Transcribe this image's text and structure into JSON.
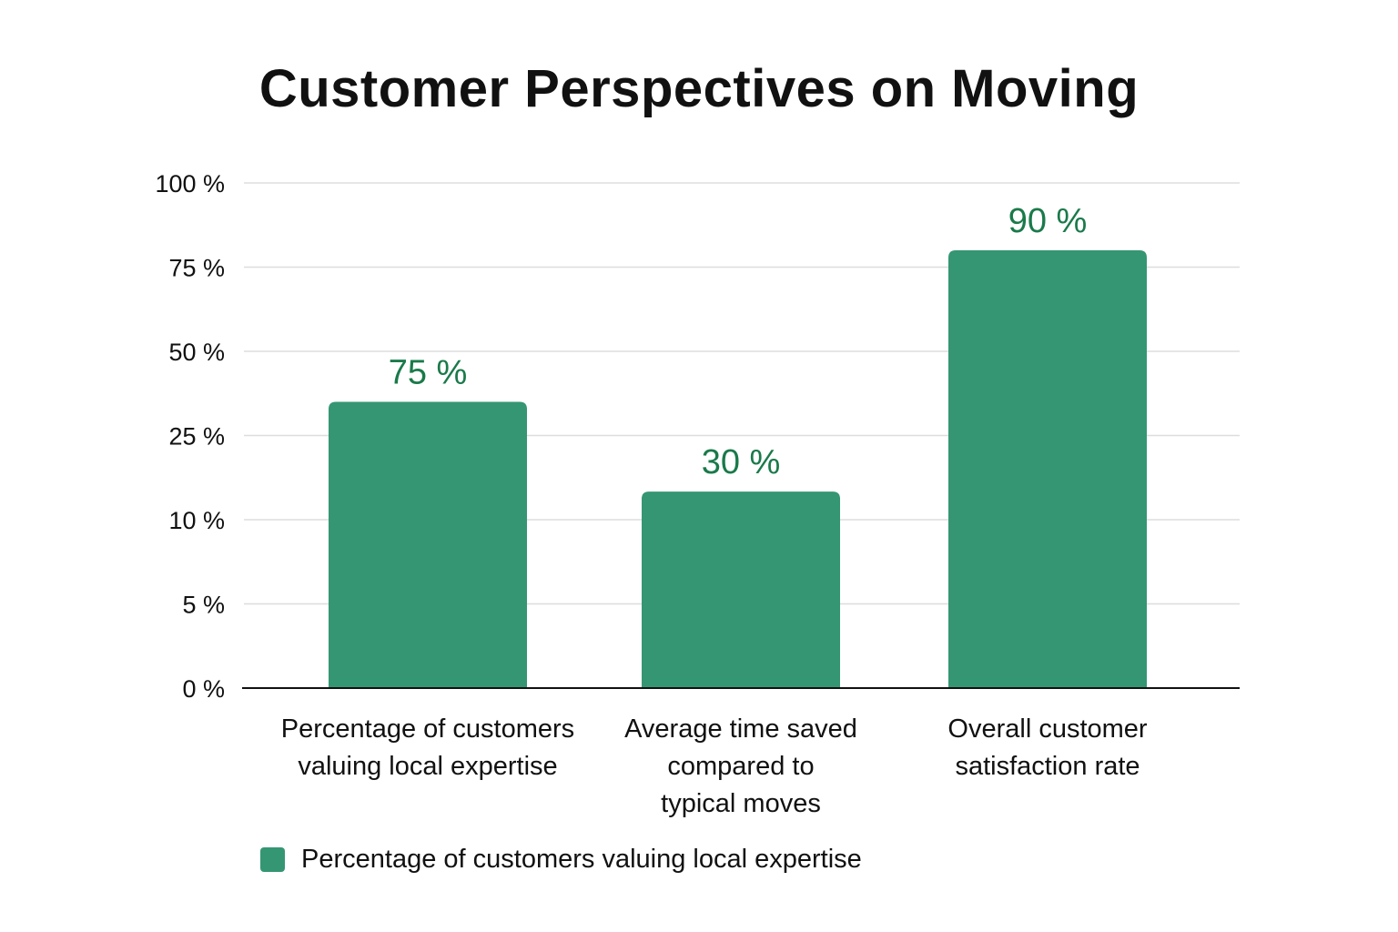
{
  "chart_data": {
    "type": "bar",
    "title": "Customer Perspectives on Moving",
    "xlabel": "",
    "ylabel": "",
    "y_ticks": [
      "0 %",
      "5 %",
      "10 %",
      "25 %",
      "50 %",
      "75 %",
      "100 %"
    ],
    "y_tick_values": [
      0,
      5,
      10,
      25,
      50,
      75,
      100
    ],
    "y_axis_scale": "categorical-even-spacing",
    "ylim": [
      0,
      100
    ],
    "grid": true,
    "categories": [
      [
        "Percentage of customers",
        "valuing local expertise"
      ],
      [
        "Average time saved",
        "compared to",
        "typical moves"
      ],
      [
        "Overall customer",
        "satisfaction rate"
      ]
    ],
    "values": [
      75,
      30,
      90
    ],
    "data_labels": [
      "75 %",
      "30 %",
      "90 %"
    ],
    "bar_visual_levels": [
      35,
      15,
      80
    ],
    "series": [
      {
        "name": "Percentage of customers valuing local expertise",
        "values": [
          75,
          30,
          90
        ]
      }
    ],
    "legend": {
      "position": "bottom-left",
      "entries": [
        "Percentage of customers valuing local expertise"
      ]
    },
    "colors": {
      "bar": "#359673",
      "data_label": "#1a7a4a",
      "grid": "#dddddd",
      "axis": "#111111"
    }
  }
}
